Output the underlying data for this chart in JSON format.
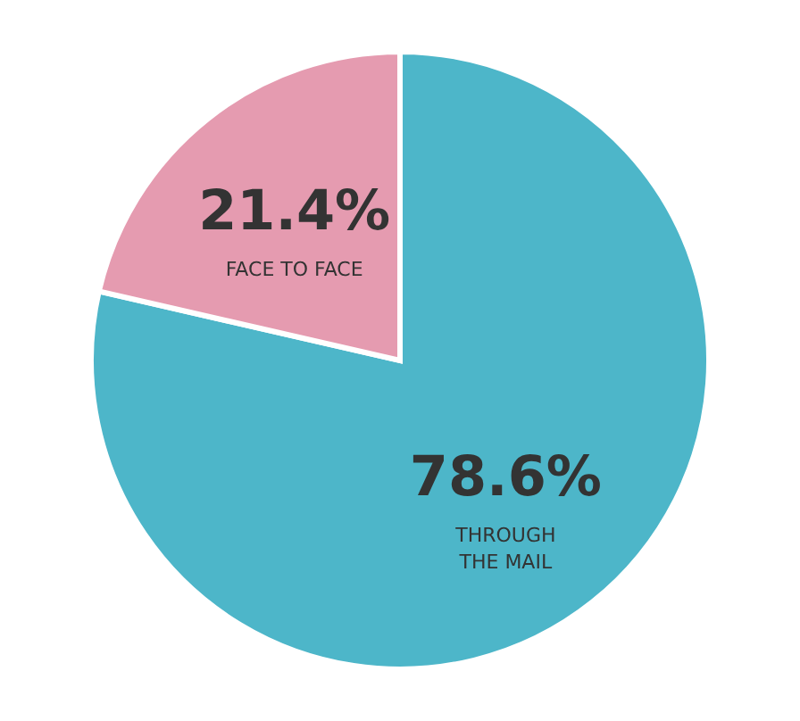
{
  "chart_data": {
    "type": "pie",
    "categories": [
      "THROUGH THE MAIL",
      "FACE TO FACE"
    ],
    "values": [
      78.6,
      21.4
    ],
    "colors": [
      "#4db6c9",
      "#e59bb0"
    ],
    "value_labels": [
      "78.6%",
      "21.4%"
    ]
  }
}
